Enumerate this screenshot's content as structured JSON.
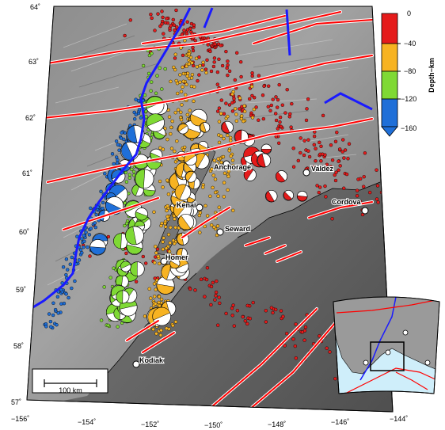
{
  "map": {
    "latitude_labels": [
      "64˚",
      "63˚",
      "62˚",
      "61˚",
      "60˚",
      "59˚",
      "58˚",
      "57˚"
    ],
    "longitude_labels": [
      "−156˚",
      "−154˚",
      "−152˚",
      "−150˚",
      "−148˚",
      "−146˚",
      "−144˚"
    ],
    "cities": [
      "Anchorage",
      "Valdez",
      "Kenai",
      "Cordova",
      "Seward",
      "Homer",
      "Kodiak"
    ],
    "scale_bar_label": "100 km",
    "colors": {
      "faults": "#ff0000",
      "slab_contour": "#0000ff",
      "coastline": "#000000",
      "inset_ocean": "#cfeefa",
      "inset_land": "#9a9a9a"
    }
  },
  "colorbar": {
    "title": "Depth−km",
    "tick_labels": [
      "0",
      "−40",
      "−80",
      "−120",
      "−160"
    ],
    "bins": [
      {
        "range": "0 to −40",
        "color": "#e51b1b"
      },
      {
        "range": "−40 to −80",
        "color": "#f7b322"
      },
      {
        "range": "−80 to −120",
        "color": "#7fd934"
      },
      {
        "range": "−120 to −160",
        "color": "#1f6fd8"
      }
    ]
  }
}
